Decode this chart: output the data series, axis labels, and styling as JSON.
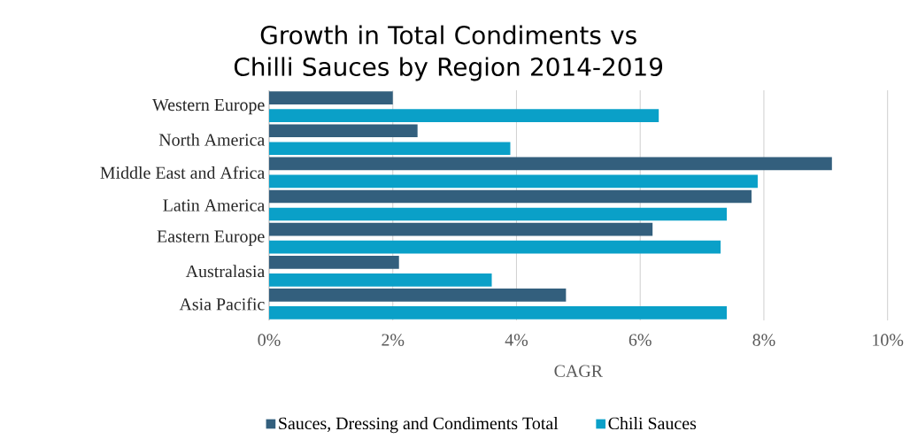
{
  "chart_data": {
    "type": "bar",
    "orientation": "horizontal",
    "title": "Growth in Total Condiments vs Chilli Sauces by Region 2014-2019",
    "xlabel": "CAGR",
    "categories": [
      "Western Europe",
      "North America",
      "Middle East and Africa",
      "Latin America",
      "Eastern Europe",
      "Australasia",
      "Asia Pacific"
    ],
    "series": [
      {
        "name": "Sauces, Dressing and Condiments Total",
        "color": "#335f7d",
        "values": [
          2.0,
          2.4,
          9.1,
          7.8,
          6.2,
          2.1,
          4.8
        ]
      },
      {
        "name": "Chili Sauces",
        "color": "#0aa0c8",
        "values": [
          6.3,
          3.9,
          7.9,
          7.4,
          7.3,
          3.6,
          7.4
        ]
      }
    ],
    "xlim": [
      0,
      10
    ],
    "xticks": [
      {
        "value": 0,
        "label": "0%"
      },
      {
        "value": 2,
        "label": "2%"
      },
      {
        "value": 4,
        "label": "4%"
      },
      {
        "value": 6,
        "label": "6%"
      },
      {
        "value": 8,
        "label": "8%"
      },
      {
        "value": 10,
        "label": "10%"
      }
    ],
    "grid": "x",
    "legend": "bottom"
  }
}
